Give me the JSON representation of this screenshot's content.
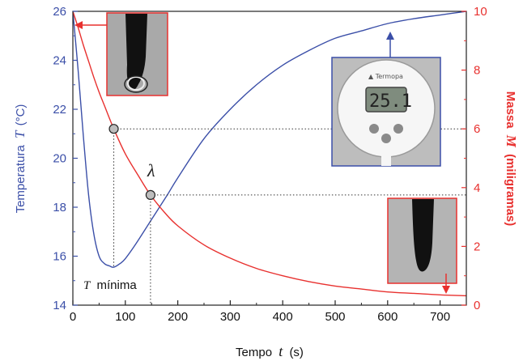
{
  "chart_data": {
    "type": "line",
    "xlabel_prefix": "Tempo",
    "xlabel_var": "t",
    "xlabel_unit": "(s)",
    "ylabel_left_prefix": "Temperatura",
    "ylabel_left_var": "T",
    "ylabel_left_unit": "(°C)",
    "ylabel_right_prefix": "Massa",
    "ylabel_right_var": "M",
    "ylabel_right_unit": "(miligramas)",
    "xlim": [
      0,
      750
    ],
    "ylim_left": [
      14,
      26
    ],
    "ylim_right": [
      0,
      10
    ],
    "x_ticks": [
      0,
      100,
      200,
      300,
      400,
      500,
      600,
      700
    ],
    "y_left_ticks": [
      14,
      16,
      18,
      20,
      22,
      24,
      26
    ],
    "y_right_ticks": [
      0,
      2,
      4,
      6,
      8,
      10
    ],
    "colors": {
      "temperature": "#3b4fa8",
      "mass": "#e8312f"
    },
    "series": [
      {
        "axis": "left",
        "color": "#3b4fa8",
        "x": [
          0,
          10,
          20,
          30,
          40,
          50,
          60,
          70,
          78,
          90,
          100,
          120,
          150,
          180,
          200,
          250,
          300,
          350,
          400,
          450,
          500,
          550,
          600,
          650,
          700,
          750
        ],
        "values": [
          26.0,
          23.6,
          20.9,
          18.5,
          16.9,
          16.0,
          15.7,
          15.6,
          15.55,
          15.7,
          15.9,
          16.5,
          17.5,
          18.5,
          19.2,
          20.8,
          22.0,
          23.0,
          23.8,
          24.4,
          24.9,
          25.2,
          25.5,
          25.7,
          25.85,
          26.0
        ]
      },
      {
        "axis": "right",
        "color": "#e8312f",
        "x": [
          0,
          10,
          20,
          30,
          40,
          50,
          60,
          78,
          100,
          125,
          148,
          175,
          200,
          250,
          300,
          350,
          400,
          450,
          500,
          550,
          600,
          650,
          700,
          750
        ],
        "values": [
          10.0,
          9.45,
          8.85,
          8.3,
          7.75,
          7.25,
          6.8,
          6.0,
          5.15,
          4.4,
          3.75,
          3.15,
          2.7,
          2.05,
          1.6,
          1.25,
          1.0,
          0.8,
          0.65,
          0.55,
          0.45,
          0.4,
          0.35,
          0.32
        ]
      }
    ],
    "points": [
      {
        "x": 78,
        "y": 6.0,
        "axis": "right"
      },
      {
        "x": 148,
        "y": 3.75,
        "axis": "right"
      }
    ],
    "min_temperature_point": {
      "x": 78,
      "y": 15.55
    },
    "annotations": {
      "lambda": "λ",
      "tmin_var": "T",
      "tmin_text": "mínima"
    }
  }
}
